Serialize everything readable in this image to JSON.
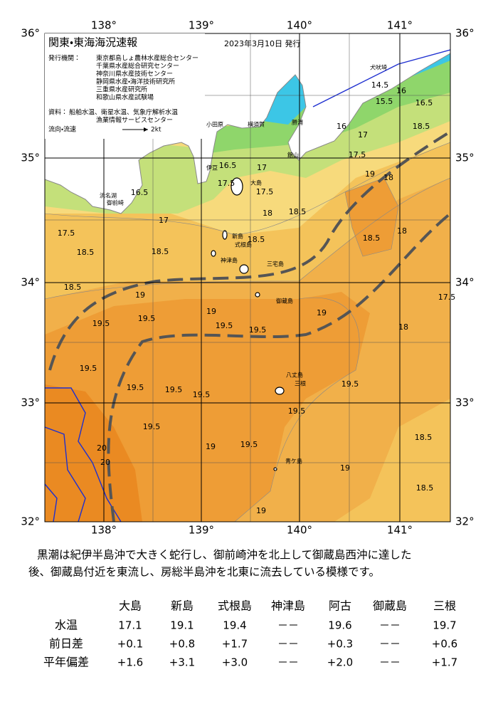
{
  "header": {
    "title": "関東・東海海況速報",
    "date": "2023年3月10日 発行",
    "issuers_label": "発行機関：",
    "issuers": [
      "東京都島しょ農林水産総合センター",
      "千葉県水産総合研究センター",
      "神奈川県水産技術センター",
      "静岡県水産・海洋技術研究所",
      "三重県水産研究所",
      "和歌山県水産試験場"
    ],
    "source_label": "資料：",
    "sources": [
      "船舶水温、衛星水温、気象庁解析水温",
      "漁業情報サービスセンター"
    ],
    "flow_label": "流向・流速",
    "flow_scale": "2kt"
  },
  "map": {
    "lon_labels": [
      "138°",
      "139°",
      "140°",
      "141°"
    ],
    "lat_labels": [
      "36°",
      "35°",
      "34°",
      "33°",
      "32°"
    ],
    "isotherm_labels": [
      "16.5",
      "17",
      "17.5",
      "18",
      "17.5",
      "18.5",
      "18.5",
      "18.5",
      "19",
      "19.5",
      "19",
      "19.5",
      "19.5",
      "19",
      "19.5",
      "19.5",
      "19.5",
      "19.5",
      "19.5",
      "19.5",
      "19.5",
      "19",
      "19.5",
      "19.5",
      "19",
      "18.5",
      "18.5",
      "18",
      "17.5",
      "18",
      "18.5",
      "18.5",
      "16.5",
      "15.5",
      "14.5",
      "16",
      "20",
      "20",
      "19",
      "16",
      "17",
      "17.5",
      "18",
      "19",
      "17.5",
      "18.5",
      "18.5",
      "17",
      "16.5"
    ],
    "place_labels": [
      "大島",
      "新島",
      "式根島",
      "神津島",
      "三宅島",
      "御蔵島",
      "八丈島",
      "三根",
      "青ケ島",
      "伊豆",
      "小田原",
      "横須賀",
      "勝浦",
      "館山",
      "御前崎",
      "浜名湖",
      "犬吠埼"
    ]
  },
  "description": [
    "黒潮は紀伊半島沖で大きく蛇行し、御前崎沖を北上して御蔵島西沖に達した",
    "後、御蔵島付近を東流し、房総半島沖を北東に流去している模様です。"
  ],
  "table": {
    "columns": [
      "大島",
      "新島",
      "式根島",
      "神津島",
      "阿古",
      "御蔵島",
      "三根"
    ],
    "rows": [
      {
        "label": "水温",
        "values": [
          "17.1",
          "19.1",
          "19.4",
          "－－",
          "19.6",
          "－－",
          "19.7"
        ]
      },
      {
        "label": "前日差",
        "values": [
          "+0.1",
          "+0.8",
          "+1.7",
          "－－",
          "+0.3",
          "－－",
          "+0.6"
        ]
      },
      {
        "label": "平年偏差",
        "values": [
          "+1.6",
          "+3.1",
          "+3.0",
          "－－",
          "+2.0",
          "－－",
          "+1.7"
        ]
      }
    ]
  }
}
